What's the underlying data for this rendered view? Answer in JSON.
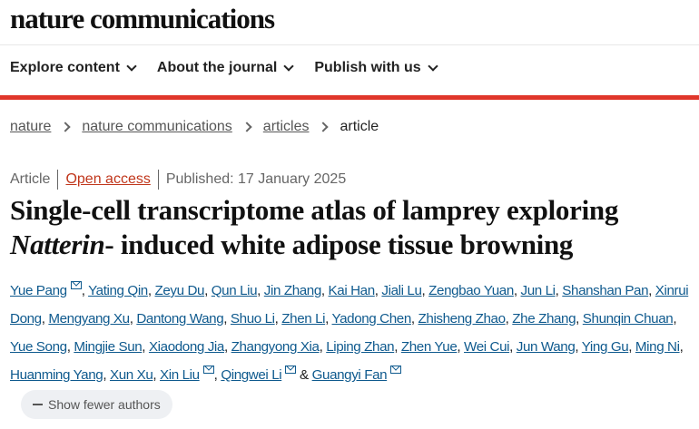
{
  "header": {
    "logo": "nature communications"
  },
  "nav": [
    {
      "label": "Explore content"
    },
    {
      "label": "About the journal"
    },
    {
      "label": "Publish with us"
    }
  ],
  "breadcrumb": {
    "items": [
      "nature",
      "nature communications",
      "articles"
    ],
    "current": "article"
  },
  "meta": {
    "type": "Article",
    "access": "Open access",
    "published": "Published: 17 January 2025"
  },
  "title": {
    "line1": "Single-cell transcriptome atlas of lamprey exploring ",
    "italic": "Natterin",
    "line2": "- induced white adipose tissue browning"
  },
  "authors": [
    {
      "name": "Yue Pang",
      "email": true
    },
    {
      "name": "Yating Qin"
    },
    {
      "name": "Zeyu Du"
    },
    {
      "name": "Qun Liu"
    },
    {
      "name": "Jin Zhang"
    },
    {
      "name": "Kai Han"
    },
    {
      "name": "Jiali Lu"
    },
    {
      "name": "Zengbao Yuan"
    },
    {
      "name": "Jun Li"
    },
    {
      "name": "Shanshan Pan"
    },
    {
      "name": "Xinrui Dong"
    },
    {
      "name": "Mengyang Xu"
    },
    {
      "name": "Dantong Wang"
    },
    {
      "name": "Shuo Li"
    },
    {
      "name": "Zhen Li"
    },
    {
      "name": "Yadong Chen"
    },
    {
      "name": "Zhisheng Zhao"
    },
    {
      "name": "Zhe Zhang"
    },
    {
      "name": "Shunqin Chuan"
    },
    {
      "name": "Yue Song"
    },
    {
      "name": "Mingjie Sun"
    },
    {
      "name": "Xiaodong Jia"
    },
    {
      "name": "Zhangyong Xia"
    },
    {
      "name": "Liping Zhan"
    },
    {
      "name": "Zhen Yue"
    },
    {
      "name": "Wei Cui"
    },
    {
      "name": "Jun Wang"
    },
    {
      "name": "Ying Gu"
    },
    {
      "name": "Ming Ni"
    },
    {
      "name": "Huanming Yang"
    },
    {
      "name": "Xun Xu"
    },
    {
      "name": "Xin Liu",
      "email": true
    },
    {
      "name": "Qingwei Li",
      "email": true
    },
    {
      "name": "Guangyi Fan",
      "email": true
    }
  ],
  "authors_last_sep": " & ",
  "show_fewer": "Show fewer authors"
}
